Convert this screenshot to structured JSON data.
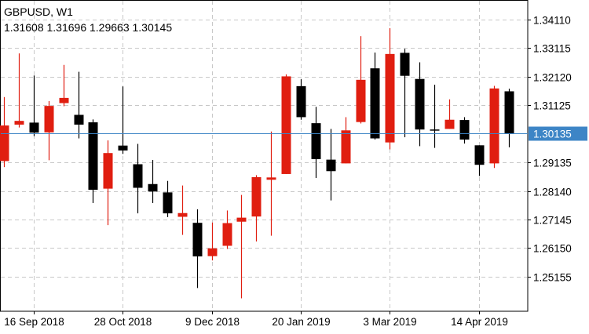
{
  "header": {
    "symbol": "GBPUSD",
    "timeframe": "W1",
    "ohlc": [
      "1.31608",
      "1.31696",
      "1.29663",
      "1.30145"
    ]
  },
  "chart_data": {
    "type": "candlestick",
    "title": "GBPUSD, W1",
    "price_label": "1.30135",
    "price_line_value": 1.30135,
    "ylim": [
      1.2395,
      1.3479
    ],
    "y_ticks": [
      {
        "value": 1.3411,
        "label": "1.34110"
      },
      {
        "value": 1.33115,
        "label": "1.33115"
      },
      {
        "value": 1.3212,
        "label": "1.32120"
      },
      {
        "value": 1.31125,
        "label": "1.31125"
      },
      {
        "value": 1.29135,
        "label": "1.29135"
      },
      {
        "value": 1.2814,
        "label": "1.28140"
      },
      {
        "value": 1.27145,
        "label": "1.27145"
      },
      {
        "value": 1.2615,
        "label": "1.26150"
      },
      {
        "value": 1.25155,
        "label": "1.25155"
      }
    ],
    "x_ticks": [
      {
        "index": 2,
        "label": "16 Sep 2018"
      },
      {
        "index": 8,
        "label": "28 Oct 2018"
      },
      {
        "index": 14,
        "label": "9 Dec 2018"
      },
      {
        "index": 20,
        "label": "20 Jan 2019"
      },
      {
        "index": 26,
        "label": "3 Mar 2019"
      },
      {
        "index": 32,
        "label": "14 Apr 2019"
      }
    ],
    "colors": {
      "bull": "#e01e10",
      "bear": "#000000",
      "grid": "#c8c8c8",
      "price_line": "#3d85c6",
      "price_label_bg": "#3d85c6"
    },
    "candles": [
      {
        "o": 1.2918,
        "h": 1.3141,
        "l": 1.2897,
        "c": 1.3042
      },
      {
        "o": 1.3045,
        "h": 1.3293,
        "l": 1.3035,
        "c": 1.3058
      },
      {
        "o": 1.3052,
        "h": 1.3216,
        "l": 1.3005,
        "c": 1.3017
      },
      {
        "o": 1.3018,
        "h": 1.3127,
        "l": 1.2921,
        "c": 1.311
      },
      {
        "o": 1.312,
        "h": 1.3253,
        "l": 1.3109,
        "c": 1.3138
      },
      {
        "o": 1.3079,
        "h": 1.3229,
        "l": 1.2997,
        "c": 1.3045
      },
      {
        "o": 1.3053,
        "h": 1.3063,
        "l": 1.2772,
        "c": 1.2818
      },
      {
        "o": 1.2822,
        "h": 1.299,
        "l": 1.2695,
        "c": 1.2946
      },
      {
        "o": 1.2972,
        "h": 1.3178,
        "l": 1.2943,
        "c": 1.2955
      },
      {
        "o": 1.2907,
        "h": 1.2978,
        "l": 1.2736,
        "c": 1.2825
      },
      {
        "o": 1.2838,
        "h": 1.2922,
        "l": 1.2772,
        "c": 1.2812
      },
      {
        "o": 1.2809,
        "h": 1.2849,
        "l": 1.2723,
        "c": 1.2736
      },
      {
        "o": 1.2724,
        "h": 1.2833,
        "l": 1.2661,
        "c": 1.2737
      },
      {
        "o": 1.2703,
        "h": 1.275,
        "l": 1.2476,
        "c": 1.2586
      },
      {
        "o": 1.2587,
        "h": 1.2704,
        "l": 1.2572,
        "c": 1.2614
      },
      {
        "o": 1.2623,
        "h": 1.2746,
        "l": 1.2612,
        "c": 1.2702
      },
      {
        "o": 1.2707,
        "h": 1.28,
        "l": 1.244,
        "c": 1.2721
      },
      {
        "o": 1.2725,
        "h": 1.2869,
        "l": 1.2638,
        "c": 1.2862
      },
      {
        "o": 1.2853,
        "h": 1.3021,
        "l": 1.2658,
        "c": 1.2861
      },
      {
        "o": 1.2873,
        "h": 1.322,
        "l": 1.2873,
        "c": 1.3213
      },
      {
        "o": 1.3179,
        "h": 1.3203,
        "l": 1.3062,
        "c": 1.3071
      },
      {
        "o": 1.305,
        "h": 1.3107,
        "l": 1.2859,
        "c": 1.2925
      },
      {
        "o": 1.2923,
        "h": 1.303,
        "l": 1.2781,
        "c": 1.2883
      },
      {
        "o": 1.291,
        "h": 1.3071,
        "l": 1.291,
        "c": 1.3025
      },
      {
        "o": 1.3054,
        "h": 1.3353,
        "l": 1.3049,
        "c": 1.3201
      },
      {
        "o": 1.3241,
        "h": 1.3296,
        "l": 1.2993,
        "c": 1.2997
      },
      {
        "o": 1.2983,
        "h": 1.3381,
        "l": 1.2959,
        "c": 1.3291
      },
      {
        "o": 1.3295,
        "h": 1.3309,
        "l": 1.3001,
        "c": 1.3215
      },
      {
        "o": 1.3204,
        "h": 1.3262,
        "l": 1.297,
        "c": 1.3028
      },
      {
        "o": 1.3028,
        "h": 1.3184,
        "l": 1.2964,
        "c": 1.3026
      },
      {
        "o": 1.303,
        "h": 1.3133,
        "l": 1.303,
        "c": 1.3062
      },
      {
        "o": 1.3061,
        "h": 1.3071,
        "l": 1.2979,
        "c": 1.2993
      },
      {
        "o": 1.2973,
        "h": 1.2973,
        "l": 1.2866,
        "c": 1.2905
      },
      {
        "o": 1.291,
        "h": 1.318,
        "l": 1.2894,
        "c": 1.3171
      },
      {
        "o": 1.3161,
        "h": 1.317,
        "l": 1.2966,
        "c": 1.3015
      }
    ]
  }
}
